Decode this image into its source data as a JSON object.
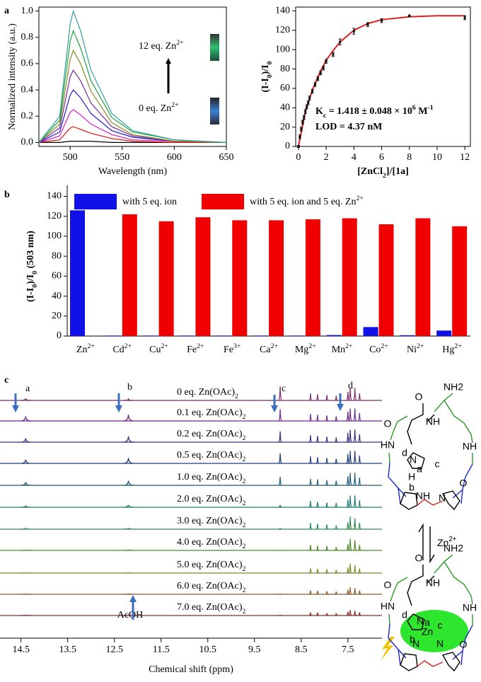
{
  "figure_labels": [
    "a",
    "b",
    "c"
  ],
  "chart_data": [
    {
      "type": "line",
      "x": [
        470,
        490,
        500,
        503,
        510,
        520,
        540,
        560,
        600,
        650
      ],
      "series": [
        {
          "color": "#000000",
          "values": [
            0,
            0,
            0.01,
            0.01,
            0.01,
            0.01,
            0,
            0,
            0,
            0
          ]
        },
        {
          "color": "#e01010",
          "values": [
            0,
            0.02,
            0.11,
            0.12,
            0.1,
            0.07,
            0.03,
            0.01,
            0,
            0
          ]
        },
        {
          "color": "#d020c0",
          "values": [
            0,
            0.05,
            0.23,
            0.25,
            0.21,
            0.14,
            0.06,
            0.02,
            0.01,
            0
          ]
        },
        {
          "color": "#1a1ad0",
          "values": [
            0,
            0.08,
            0.36,
            0.4,
            0.34,
            0.22,
            0.09,
            0.04,
            0.01,
            0
          ]
        },
        {
          "color": "#7a2a9a",
          "values": [
            0,
            0.11,
            0.5,
            0.55,
            0.47,
            0.3,
            0.12,
            0.05,
            0.01,
            0
          ]
        },
        {
          "color": "#8a8a20",
          "values": [
            0,
            0.14,
            0.63,
            0.7,
            0.6,
            0.39,
            0.15,
            0.06,
            0.01,
            0
          ]
        },
        {
          "color": "#20a040",
          "values": [
            0,
            0.17,
            0.77,
            0.85,
            0.72,
            0.47,
            0.19,
            0.08,
            0.02,
            0
          ]
        },
        {
          "color": "#30a0a0",
          "values": [
            0,
            0.2,
            0.9,
            1.0,
            0.85,
            0.55,
            0.22,
            0.09,
            0.02,
            0
          ]
        }
      ],
      "xlim": [
        470,
        650
      ],
      "xticks": [
        500,
        550,
        600,
        650
      ],
      "ylim": [
        -0.03,
        1.03
      ],
      "yticks": [
        {
          "value": 0,
          "label": "0.0"
        },
        0.2,
        0.4,
        0.6,
        0.8,
        {
          "value": 1,
          "label": "1.0"
        }
      ],
      "xlabel": "Wavelength (nm)",
      "ylabel": "Normalized intensity (a.u.)",
      "annotations": [
        {
          "text": "12 eq. Zn",
          "sup": "2+"
        },
        {
          "text": "0 eq. Zn",
          "sup": "2+"
        }
      ]
    },
    {
      "type": "scatter",
      "x": [
        0,
        0.1,
        0.2,
        0.3,
        0.4,
        0.5,
        0.6,
        0.7,
        0.8,
        1,
        1.2,
        1.4,
        1.6,
        1.8,
        2,
        2.5,
        3,
        4,
        5,
        6,
        8,
        12
      ],
      "values": [
        0,
        10,
        18,
        25,
        30,
        36,
        41,
        45,
        50,
        57,
        64,
        70,
        76,
        81,
        88,
        95,
        108,
        119,
        126,
        130,
        135,
        133
      ],
      "errors": [
        1,
        2,
        2,
        2,
        2,
        2,
        2,
        2,
        2,
        2,
        2,
        2,
        2,
        2,
        2,
        2,
        3,
        3,
        2,
        2,
        1,
        2
      ],
      "color": "#000000",
      "fit": {
        "color": "#e02020",
        "x": [
          0,
          0.5,
          1,
          1.5,
          2,
          2.5,
          3,
          4,
          5,
          6,
          8,
          10,
          12
        ],
        "values": [
          0,
          36,
          58,
          75,
          89,
          99,
          108,
          120,
          127,
          131,
          134,
          135,
          135
        ]
      },
      "xlim": [
        -0.2,
        12.4
      ],
      "xticks": [
        0,
        2,
        4,
        6,
        8,
        10,
        12
      ],
      "ylim": [
        0,
        144
      ],
      "yticks": [
        0,
        20,
        40,
        60,
        80,
        100,
        120,
        140
      ],
      "xlabel": [
        {
          "text": "[ZnCl",
          "sub": "2"
        },
        {
          "text": "]/[1a]"
        }
      ],
      "ylabel": [
        {
          "text": "(I-I",
          "sub": "0"
        },
        {
          "text": ")/I",
          "sub": "0"
        }
      ],
      "annotations": [
        [
          {
            "text": "K",
            "sub": "c"
          },
          {
            "text": " = 1.418 ± 0.048 × 10",
            "sup": "6"
          },
          {
            "text": " M",
            "sup": "-1"
          }
        ],
        "LOD = 4.37 nM"
      ]
    },
    {
      "type": "bar",
      "categories": [
        {
          "text": "Zn",
          "sup": "2+"
        },
        {
          "text": "Cd",
          "sup": "2+"
        },
        {
          "text": "Cu",
          "sup": "2+"
        },
        {
          "text": "Fe",
          "sup": "2+"
        },
        {
          "text": "Fe",
          "sup": "3+"
        },
        {
          "text": "Ca",
          "sup": "2+"
        },
        {
          "text": "Mg",
          "sup": "2+"
        },
        {
          "text": "Mn",
          "sup": "2+"
        },
        {
          "text": "Co",
          "sup": "2+"
        },
        {
          "text": "Ni",
          "sup": "2+"
        },
        {
          "text": "Hg",
          "sup": "2+"
        }
      ],
      "series": [
        {
          "name": "with 5 eq. ion",
          "color": "#1010e8",
          "values": [
            126,
            0.5,
            0.5,
            0.5,
            0.5,
            0.5,
            0.5,
            1,
            9,
            0.8,
            5.5
          ]
        },
        {
          "name": {
            "text": "with 5 eq. ion and 5 eq. Zn",
            "sup": "2+"
          },
          "color": "#f00000",
          "values": [
            null,
            122,
            115,
            119,
            116,
            116,
            117,
            118,
            112,
            118,
            110
          ]
        }
      ],
      "ylim": [
        0,
        151
      ],
      "yticks": [
        0,
        20,
        40,
        60,
        80,
        100,
        120,
        140
      ],
      "ylabel": [
        {
          "text": "(I-I",
          "sub": "0"
        },
        {
          "text": ")/I",
          "sub": "0"
        },
        {
          "text": " (503 nm)"
        }
      ]
    },
    {
      "type": "nmr",
      "peak_x": [
        14.4,
        12.2,
        8.95,
        8.3,
        8.15,
        7.95,
        7.75,
        7.5,
        7.45,
        7.35,
        7.25
      ],
      "series": [
        {
          "name": {
            "text": "0 eq. Zn(OAc)",
            "sub": "2"
          },
          "color": "#7a2d6e",
          "values": [
            0.12,
            0.08,
            0.9,
            0.45,
            0.4,
            0.35,
            0.3,
            0.55,
            0.8,
            0.8,
            0.45
          ]
        },
        {
          "name": {
            "text": "0.1 eq. Zn(OAc)",
            "sub": "2"
          },
          "color": "#6a2a8a",
          "values": [
            0.3,
            0.4,
            0.75,
            0.45,
            0.4,
            0.35,
            0.3,
            0.6,
            0.8,
            0.8,
            0.5
          ]
        },
        {
          "name": {
            "text": "0.2 eq. Zn(OAc)",
            "sub": "2"
          },
          "color": "#3a2a7a",
          "values": [
            0.25,
            0.38,
            0.7,
            0.45,
            0.4,
            0.35,
            0.3,
            0.6,
            0.8,
            0.8,
            0.5
          ]
        },
        {
          "name": {
            "text": "0.5 eq. Zn(OAc)",
            "sub": "2"
          },
          "color": "#1f3a7a",
          "values": [
            0.25,
            0.35,
            0.65,
            0.45,
            0.4,
            0.35,
            0.3,
            0.6,
            0.8,
            0.8,
            0.5
          ]
        },
        {
          "name": {
            "text": "1.0 eq. Zn(OAc)",
            "sub": "2"
          },
          "color": "#1e5a7a",
          "values": [
            0.2,
            0.3,
            0.55,
            0.42,
            0.38,
            0.33,
            0.3,
            0.6,
            0.8,
            0.8,
            0.5
          ]
        },
        {
          "name": {
            "text": "2.0 eq. Zn(OAc)",
            "sub": "2"
          },
          "color": "#1e7a72",
          "values": [
            0.1,
            0.15,
            0.15,
            0.4,
            0.35,
            0.3,
            0.28,
            0.5,
            0.75,
            0.75,
            0.45
          ]
        },
        {
          "name": {
            "text": "3.0 eq. Zn(OAc)",
            "sub": "2"
          },
          "color": "#2e8a50",
          "values": [
            0.05,
            0.05,
            0.05,
            0.4,
            0.35,
            0.3,
            0.25,
            0.45,
            0.8,
            0.7,
            0.4
          ]
        },
        {
          "name": {
            "text": "4.0 eq. Zn(OAc)",
            "sub": "2"
          },
          "color": "#4a8a2a",
          "values": [
            0.02,
            0.03,
            0.02,
            0.35,
            0.3,
            0.28,
            0.22,
            0.4,
            0.75,
            0.65,
            0.35
          ]
        },
        {
          "name": {
            "text": "5.0 eq. Zn(OAc)",
            "sub": "2"
          },
          "color": "#7a8a2a",
          "values": [
            0.02,
            0.02,
            0.02,
            0.3,
            0.28,
            0.25,
            0.2,
            0.35,
            0.6,
            0.5,
            0.3
          ]
        },
        {
          "name": {
            "text": "6.0 eq. Zn(OAc)",
            "sub": "2"
          },
          "color": "#8a5a2a",
          "values": [
            0.02,
            0.03,
            0.02,
            0.25,
            0.22,
            0.2,
            0.18,
            0.3,
            0.45,
            0.4,
            0.25
          ]
        },
        {
          "name": {
            "text": "7.0 eq. Zn(OAc)",
            "sub": "2"
          },
          "color": "#8a2a2a",
          "values": [
            0.02,
            0.02,
            0.02,
            0.2,
            0.18,
            0.15,
            0.15,
            0.25,
            0.35,
            0.3,
            0.2
          ]
        }
      ],
      "xlim": [
        14.95,
        6.77
      ],
      "xticks": [
        14.5,
        13.5,
        12.5,
        11.5,
        10.5,
        9.5,
        8.5,
        7.5
      ],
      "xlabel": "Chemical shift (ppm)",
      "annotations": [
        "a",
        "b",
        "c",
        "d",
        "AcOH"
      ]
    }
  ],
  "diagram": {
    "top": [
      "NH2",
      "O",
      "O",
      "NH",
      "HN",
      "N",
      "H",
      "a",
      "b",
      "c",
      "d",
      "NH",
      "N",
      "NH",
      "O"
    ],
    "reagent": {
      "text": "Zn",
      "sup": "2+"
    },
    "bottom": [
      "NH2",
      "O",
      "O",
      "NH",
      "HN",
      "N",
      "a",
      "b",
      "c",
      "d",
      "Zn",
      "N",
      "N",
      "NH",
      "O"
    ]
  }
}
